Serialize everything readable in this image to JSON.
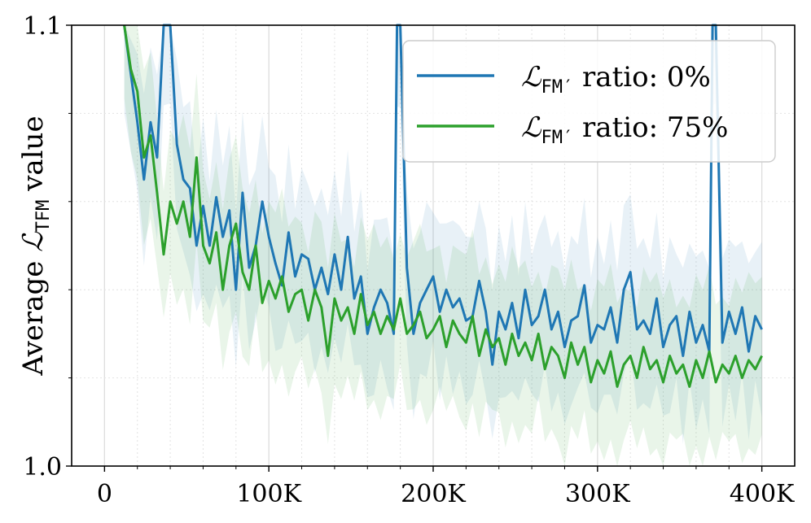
{
  "chart_data": {
    "type": "line",
    "title": "",
    "xlabel": "",
    "ylabel": "Average ℒ_TFM value",
    "ylabel_parts": {
      "prefix": "Average ",
      "symbol": "ℒ",
      "subscript": "TFM",
      "suffix": " value"
    },
    "xlim": [
      -20000,
      420000
    ],
    "ylim": [
      1.0,
      1.1
    ],
    "x_ticks": [
      {
        "value": 0,
        "label": "0"
      },
      {
        "value": 100000,
        "label": "100K"
      },
      {
        "value": 200000,
        "label": "200K"
      },
      {
        "value": 300000,
        "label": "300K"
      },
      {
        "value": 400000,
        "label": "400K"
      }
    ],
    "y_ticks": [
      {
        "value": 1.0,
        "label": "1.0"
      },
      {
        "value": 1.1,
        "label": "1.1"
      }
    ],
    "grid": true,
    "legend_position": "top-right",
    "series": [
      {
        "name": "ℒ_FM′ ratio: 0%",
        "legend": {
          "symbol": "ℒ",
          "subscript": "FM′",
          "text": " ratio: 0%"
        },
        "color": "#1f77b4",
        "band_color": "#1f77b4",
        "x": [
          12000,
          20000,
          24000,
          28000,
          32000,
          36000,
          40000,
          44000,
          48000,
          52000,
          56000,
          60000,
          64000,
          68000,
          72000,
          76000,
          80000,
          84000,
          88000,
          92000,
          96000,
          100000,
          104000,
          108000,
          112000,
          116000,
          120000,
          124000,
          128000,
          132000,
          136000,
          140000,
          144000,
          148000,
          152000,
          156000,
          160000,
          164000,
          168000,
          172000,
          176000,
          178000,
          180000,
          184000,
          188000,
          192000,
          196000,
          200000,
          204000,
          208000,
          212000,
          216000,
          220000,
          224000,
          228000,
          232000,
          236000,
          240000,
          244000,
          248000,
          252000,
          256000,
          260000,
          264000,
          268000,
          272000,
          276000,
          280000,
          284000,
          288000,
          292000,
          296000,
          300000,
          304000,
          308000,
          312000,
          316000,
          320000,
          324000,
          328000,
          332000,
          336000,
          340000,
          344000,
          348000,
          352000,
          356000,
          360000,
          364000,
          368000,
          370000,
          372000,
          376000,
          380000,
          384000,
          388000,
          392000,
          396000,
          400000
        ],
        "y": [
          1.1,
          1.078,
          1.065,
          1.078,
          1.07,
          1.1,
          1.1,
          1.073,
          1.065,
          1.063,
          1.05,
          1.059,
          1.05,
          1.061,
          1.052,
          1.058,
          1.04,
          1.062,
          1.045,
          1.05,
          1.06,
          1.052,
          1.046,
          1.041,
          1.053,
          1.043,
          1.048,
          1.047,
          1.04,
          1.045,
          1.039,
          1.048,
          1.04,
          1.052,
          1.038,
          1.043,
          1.03,
          1.036,
          1.04,
          1.037,
          1.03,
          1.1,
          1.1,
          1.045,
          1.03,
          1.037,
          1.04,
          1.043,
          1.035,
          1.04,
          1.036,
          1.038,
          1.033,
          1.034,
          1.042,
          1.035,
          1.023,
          1.035,
          1.031,
          1.037,
          1.029,
          1.04,
          1.032,
          1.034,
          1.04,
          1.031,
          1.035,
          1.027,
          1.033,
          1.034,
          1.041,
          1.028,
          1.032,
          1.031,
          1.036,
          1.028,
          1.04,
          1.044,
          1.031,
          1.033,
          1.03,
          1.038,
          1.027,
          1.032,
          1.034,
          1.025,
          1.035,
          1.028,
          1.032,
          1.026,
          1.1,
          1.1,
          1.028,
          1.035,
          1.03,
          1.036,
          1.026,
          1.034,
          1.031
        ]
      },
      {
        "name": "ℒ_FM′ ratio: 75%",
        "legend": {
          "symbol": "ℒ",
          "subscript": "FM′",
          "text": " ratio: 75%"
        },
        "color": "#2ca02c",
        "band_color": "#2ca02c",
        "x": [
          12000,
          16000,
          20000,
          24000,
          28000,
          32000,
          36000,
          40000,
          44000,
          48000,
          52000,
          56000,
          60000,
          64000,
          68000,
          72000,
          76000,
          80000,
          84000,
          88000,
          92000,
          96000,
          100000,
          104000,
          108000,
          112000,
          116000,
          120000,
          124000,
          128000,
          132000,
          136000,
          140000,
          144000,
          148000,
          152000,
          156000,
          160000,
          164000,
          168000,
          172000,
          176000,
          180000,
          184000,
          188000,
          192000,
          196000,
          200000,
          204000,
          208000,
          212000,
          216000,
          220000,
          224000,
          228000,
          232000,
          236000,
          240000,
          244000,
          248000,
          252000,
          256000,
          260000,
          264000,
          268000,
          272000,
          276000,
          280000,
          284000,
          288000,
          292000,
          296000,
          300000,
          304000,
          308000,
          312000,
          316000,
          320000,
          324000,
          328000,
          332000,
          336000,
          340000,
          344000,
          348000,
          352000,
          356000,
          360000,
          364000,
          368000,
          372000,
          376000,
          380000,
          384000,
          388000,
          392000,
          396000,
          400000
        ],
        "y": [
          1.1,
          1.09,
          1.085,
          1.07,
          1.075,
          1.062,
          1.048,
          1.06,
          1.055,
          1.06,
          1.052,
          1.07,
          1.05,
          1.046,
          1.053,
          1.04,
          1.05,
          1.055,
          1.044,
          1.04,
          1.05,
          1.037,
          1.042,
          1.038,
          1.043,
          1.035,
          1.039,
          1.04,
          1.033,
          1.04,
          1.036,
          1.025,
          1.038,
          1.033,
          1.036,
          1.03,
          1.039,
          1.032,
          1.035,
          1.03,
          1.034,
          1.031,
          1.038,
          1.03,
          1.032,
          1.035,
          1.029,
          1.031,
          1.034,
          1.027,
          1.033,
          1.03,
          1.028,
          1.034,
          1.025,
          1.031,
          1.027,
          1.029,
          1.023,
          1.03,
          1.025,
          1.028,
          1.024,
          1.03,
          1.022,
          1.027,
          1.025,
          1.02,
          1.028,
          1.023,
          1.027,
          1.019,
          1.024,
          1.021,
          1.026,
          1.018,
          1.023,
          1.025,
          1.02,
          1.027,
          1.022,
          1.024,
          1.019,
          1.025,
          1.021,
          1.023,
          1.018,
          1.024,
          1.02,
          1.026,
          1.019,
          1.023,
          1.021,
          1.025,
          1.02,
          1.024,
          1.022,
          1.025
        ]
      }
    ]
  }
}
